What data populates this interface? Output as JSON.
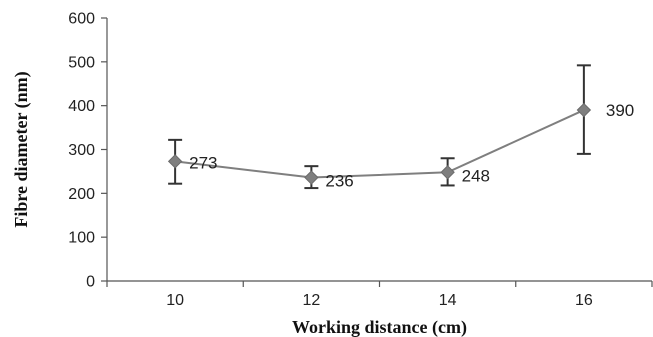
{
  "chart_data": {
    "type": "line",
    "title": "",
    "xlabel": "Working distance (cm)",
    "ylabel": "Fibre diameter (nm)",
    "categories": [
      "10",
      "12",
      "14",
      "16"
    ],
    "values": [
      273,
      236,
      248,
      390
    ],
    "error_bars": {
      "upper": [
        322,
        262,
        280,
        492
      ],
      "lower": [
        222,
        212,
        218,
        290
      ]
    },
    "data_labels": [
      "273",
      "236",
      "248",
      "390"
    ],
    "ylim": [
      0,
      600
    ],
    "yticks": [
      "0",
      "100",
      "200",
      "300",
      "400",
      "500",
      "600"
    ],
    "grid": false,
    "legend": "none",
    "marker": "diamond",
    "line_color": "#7f7f7f",
    "marker_color": "#7f7f7f",
    "errorbar_color": "#333333",
    "axis_color": "#555555"
  }
}
